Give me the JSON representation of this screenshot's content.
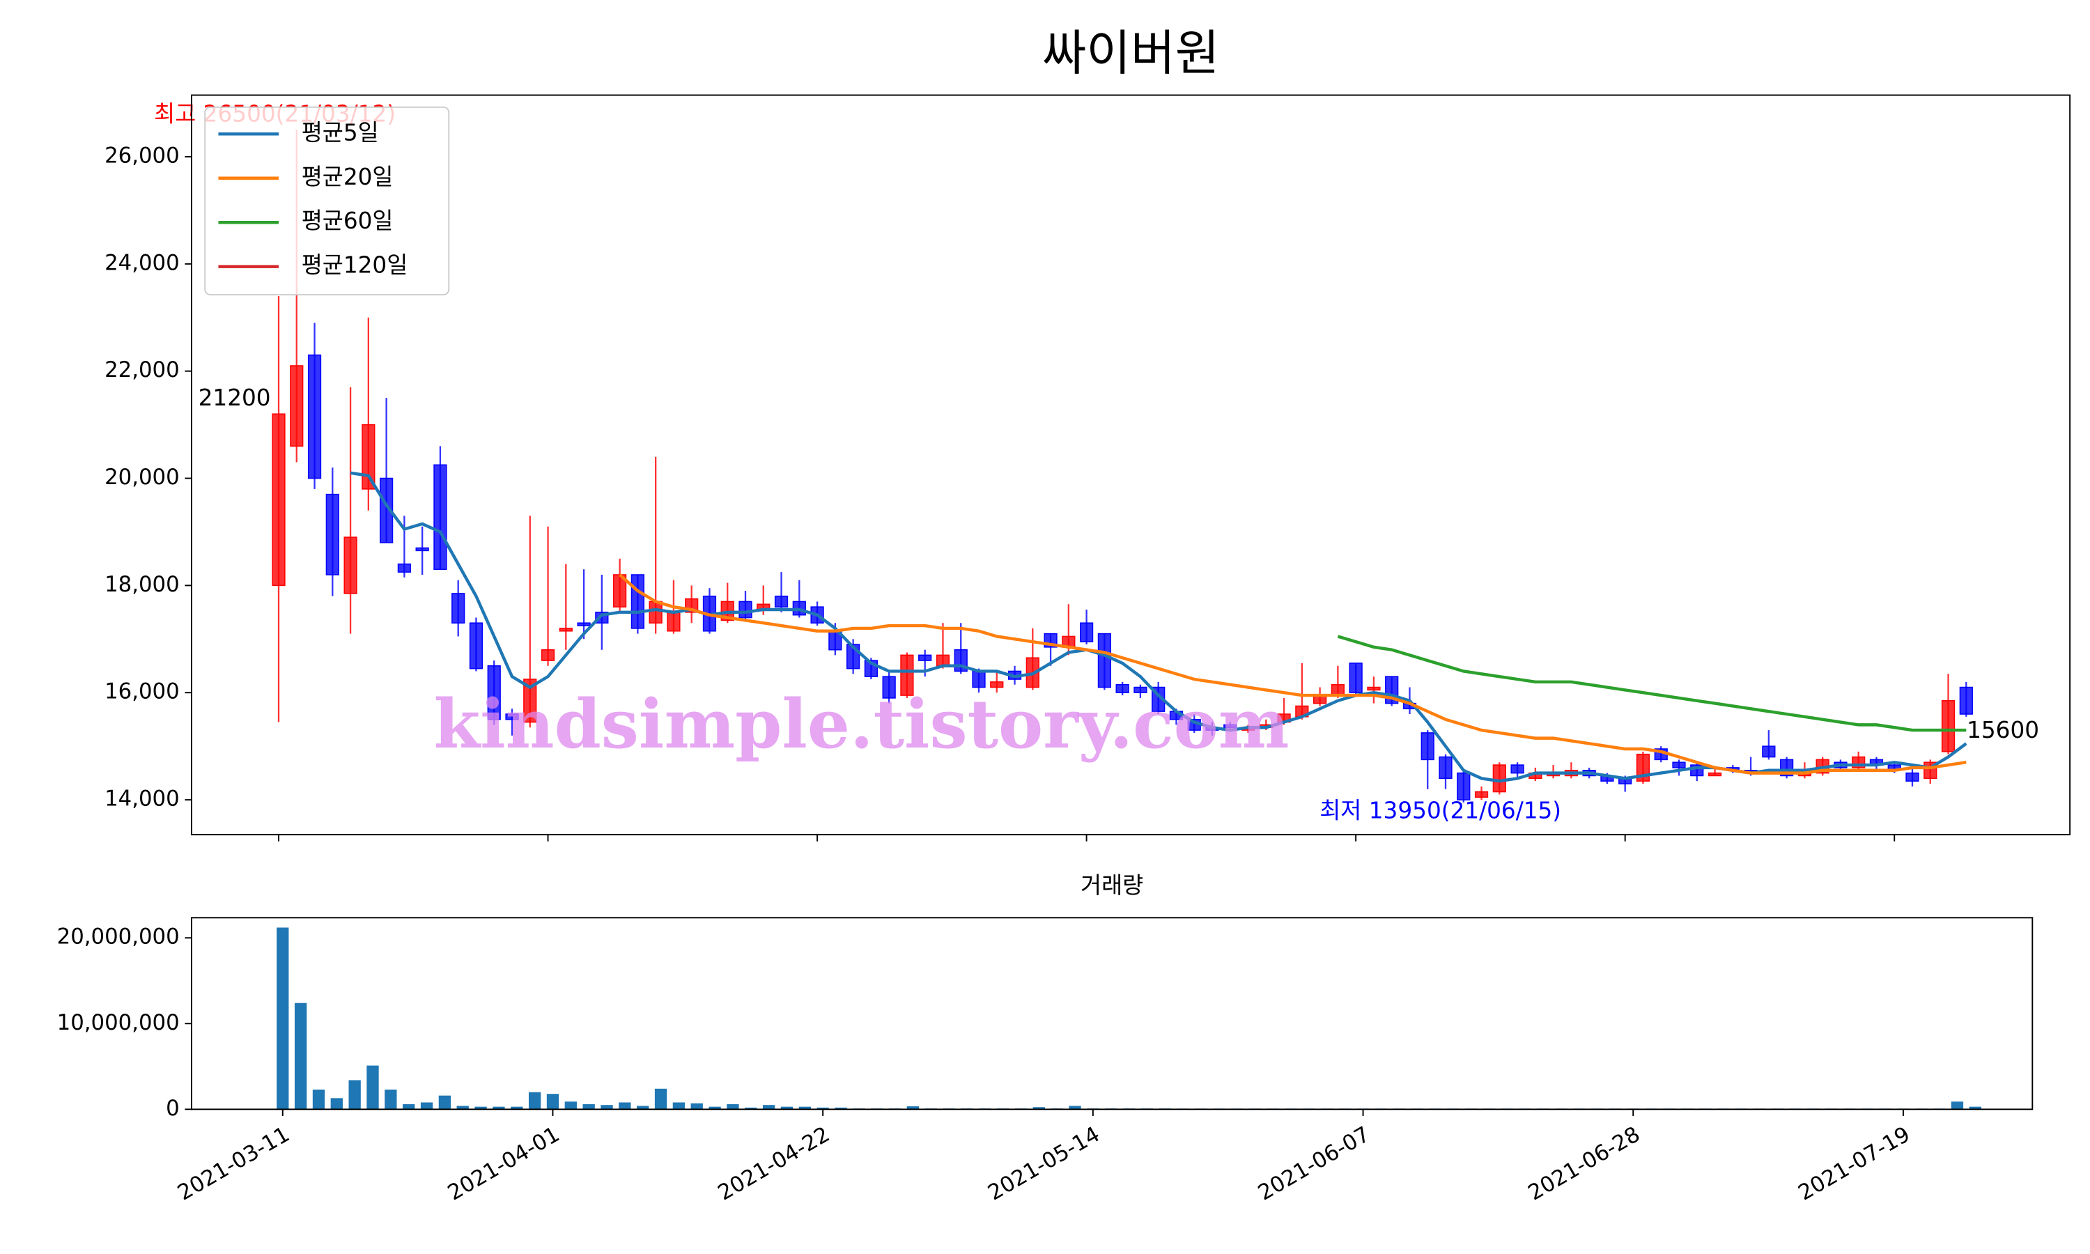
{
  "chart_data": [
    {
      "type": "candlestick",
      "title": "싸이버원",
      "categories": [
        "2021-03-11",
        "2021-03-12",
        "2021-03-15",
        "2021-03-16",
        "2021-03-17",
        "2021-03-18",
        "2021-03-19",
        "2021-03-22",
        "2021-03-23",
        "2021-03-24",
        "2021-03-25",
        "2021-03-26",
        "2021-03-29",
        "2021-03-30",
        "2021-03-31",
        "2021-04-01",
        "2021-04-02",
        "2021-04-05",
        "2021-04-06",
        "2021-04-07",
        "2021-04-08",
        "2021-04-09",
        "2021-04-12",
        "2021-04-13",
        "2021-04-14",
        "2021-04-15",
        "2021-04-16",
        "2021-04-19",
        "2021-04-20",
        "2021-04-21",
        "2021-04-22",
        "2021-04-23",
        "2021-04-26",
        "2021-04-27",
        "2021-04-28",
        "2021-04-29",
        "2021-04-30",
        "2021-05-03",
        "2021-05-04",
        "2021-05-06",
        "2021-05-07",
        "2021-05-10",
        "2021-05-11",
        "2021-05-12",
        "2021-05-13",
        "2021-05-14",
        "2021-05-17",
        "2021-05-18",
        "2021-05-20",
        "2021-05-21",
        "2021-05-24",
        "2021-05-25",
        "2021-05-26",
        "2021-05-27",
        "2021-05-28",
        "2021-05-31",
        "2021-06-01",
        "2021-06-02",
        "2021-06-03",
        "2021-06-04",
        "2021-06-07",
        "2021-06-08",
        "2021-06-09",
        "2021-06-10",
        "2021-06-11",
        "2021-06-14",
        "2021-06-15",
        "2021-06-16",
        "2021-06-17",
        "2021-06-18",
        "2021-06-21",
        "2021-06-22",
        "2021-06-23",
        "2021-06-24",
        "2021-06-25",
        "2021-06-28",
        "2021-06-29",
        "2021-06-30",
        "2021-07-01",
        "2021-07-02",
        "2021-07-05",
        "2021-07-06",
        "2021-07-07",
        "2021-07-08",
        "2021-07-09",
        "2021-07-12",
        "2021-07-13",
        "2021-07-14",
        "2021-07-15",
        "2021-07-16",
        "2021-07-19",
        "2021-07-20",
        "2021-07-21",
        "2021-07-22",
        "2021-07-23"
      ],
      "open": [
        18000,
        20600,
        22300,
        19700,
        17850,
        19800,
        20000,
        18400,
        18700,
        20250,
        17850,
        17300,
        16500,
        15600,
        15450,
        16600,
        17150,
        17300,
        17500,
        17600,
        18200,
        17300,
        17150,
        17500,
        17800,
        17350,
        17700,
        17550,
        17800,
        17700,
        17600,
        17150,
        16900,
        16600,
        16300,
        15950,
        16700,
        16500,
        16800,
        16400,
        16100,
        16400,
        16100,
        17100,
        16850,
        17300,
        17100,
        16150,
        16100,
        16100,
        15650,
        15500,
        15350,
        15400,
        15300,
        15350,
        15450,
        15550,
        15800,
        15950,
        16550,
        16050,
        16300,
        15800,
        15250,
        14800,
        14500,
        14050,
        14150,
        14650,
        14400,
        14450,
        14450,
        14550,
        14450,
        14400,
        14350,
        14950,
        14700,
        14650,
        14450,
        14600,
        14550,
        15000,
        14750,
        14450,
        14500,
        14700,
        14600,
        14750,
        14650,
        14500,
        14400,
        14900,
        16100
      ],
      "high": [
        23400,
        26500,
        22900,
        20200,
        21700,
        23000,
        21500,
        19300,
        19100,
        20600,
        18100,
        17400,
        16600,
        15700,
        19300,
        19100,
        18400,
        18300,
        18200,
        18500,
        18200,
        20400,
        18100,
        18000,
        17950,
        18050,
        17900,
        18000,
        18250,
        18100,
        17700,
        17300,
        17000,
        16650,
        16400,
        16750,
        16800,
        17300,
        17300,
        16450,
        16400,
        16500,
        17200,
        17100,
        17650,
        17550,
        17100,
        16200,
        16150,
        16200,
        15700,
        15600,
        15450,
        15450,
        15400,
        15500,
        15900,
        16550,
        16100,
        16500,
        16550,
        16300,
        16300,
        16100,
        15300,
        14850,
        14550,
        14250,
        14700,
        14700,
        14600,
        14650,
        14700,
        14600,
        14500,
        14450,
        14900,
        15000,
        14750,
        14700,
        14600,
        14650,
        14800,
        15300,
        14800,
        14700,
        14800,
        14750,
        14900,
        14800,
        14700,
        14600,
        14750,
        16350,
        16200
      ],
      "low": [
        15450,
        20300,
        19800,
        17800,
        17100,
        19400,
        18800,
        18150,
        18200,
        18300,
        17050,
        16400,
        15400,
        15200,
        15350,
        16500,
        16800,
        17000,
        16800,
        17500,
        17100,
        17100,
        17100,
        17300,
        17100,
        17300,
        17350,
        17450,
        17500,
        17400,
        17250,
        16700,
        16350,
        16250,
        15800,
        15900,
        16300,
        16450,
        16350,
        16000,
        16000,
        16150,
        16050,
        16500,
        16700,
        16900,
        16050,
        15950,
        15900,
        15600,
        15400,
        15250,
        15200,
        15300,
        15250,
        15300,
        15400,
        15500,
        15750,
        15900,
        15950,
        15800,
        15750,
        15600,
        14200,
        14200,
        13950,
        14000,
        14100,
        14400,
        14350,
        14400,
        14400,
        14400,
        14300,
        14150,
        14300,
        14700,
        14450,
        14350,
        14450,
        14500,
        14450,
        14750,
        14400,
        14400,
        14450,
        14550,
        14550,
        14550,
        14500,
        14250,
        14300,
        14850,
        15550
      ],
      "close": [
        21200,
        22100,
        20000,
        18200,
        18900,
        21000,
        18800,
        18250,
        18650,
        18300,
        17300,
        16450,
        15500,
        15500,
        16250,
        16800,
        17200,
        17250,
        17300,
        18200,
        17200,
        17700,
        17500,
        17750,
        17150,
        17700,
        17400,
        17650,
        17600,
        17450,
        17300,
        16800,
        16450,
        16300,
        15900,
        16700,
        16600,
        16700,
        16400,
        16100,
        16200,
        16250,
        16650,
        16850,
        17050,
        16950,
        16100,
        16000,
        16000,
        15650,
        15500,
        15300,
        15300,
        15350,
        15350,
        15400,
        15600,
        15750,
        15950,
        16150,
        16000,
        16100,
        15800,
        15700,
        14750,
        14400,
        14000,
        14150,
        14650,
        14500,
        14500,
        14500,
        14550,
        14450,
        14350,
        14300,
        14850,
        14750,
        14600,
        14450,
        14500,
        14550,
        14500,
        14800,
        14450,
        14500,
        14750,
        14600,
        14800,
        14650,
        14550,
        14350,
        14700,
        15850,
        15600
      ],
      "up_color": "#ff0000",
      "down_color": "#0000ff",
      "series": [
        {
          "name": "평균5일",
          "color": "#1f77b4",
          "values": [
            null,
            null,
            null,
            null,
            20100,
            20050,
            19500,
            19050,
            19150,
            19000,
            18400,
            17800,
            17050,
            16300,
            16100,
            16300,
            16700,
            17100,
            17450,
            17500,
            17500,
            17550,
            17500,
            17550,
            17450,
            17500,
            17500,
            17550,
            17550,
            17550,
            17450,
            17200,
            16850,
            16550,
            16400,
            16400,
            16400,
            16500,
            16500,
            16400,
            16400,
            16300,
            16350,
            16550,
            16750,
            16800,
            16700,
            16550,
            16300,
            15950,
            15650,
            15450,
            15350,
            15300,
            15350,
            15350,
            15450,
            15550,
            15700,
            15850,
            15950,
            16000,
            15950,
            15850,
            15450,
            15000,
            14550,
            14400,
            14350,
            14400,
            14500,
            14500,
            14500,
            14500,
            14450,
            14400,
            14450,
            14500,
            14550,
            14600,
            14600,
            14550,
            14500,
            14550,
            14550,
            14550,
            14600,
            14650,
            14650,
            14650,
            14700,
            14650,
            14600,
            14800,
            15050
          ]
        },
        {
          "name": "평균20일",
          "color": "#ff7f0e",
          "values": [
            null,
            null,
            null,
            null,
            null,
            null,
            null,
            null,
            null,
            null,
            null,
            null,
            null,
            null,
            null,
            null,
            null,
            null,
            null,
            18200,
            17900,
            17700,
            17600,
            17550,
            17450,
            17400,
            17350,
            17300,
            17250,
            17200,
            17150,
            17150,
            17200,
            17200,
            17250,
            17250,
            17250,
            17200,
            17200,
            17150,
            17050,
            17000,
            16950,
            16900,
            16850,
            16800,
            16750,
            16650,
            16550,
            16450,
            16350,
            16250,
            16200,
            16150,
            16100,
            16050,
            16000,
            15950,
            15950,
            15950,
            15950,
            15950,
            15900,
            15800,
            15650,
            15500,
            15400,
            15300,
            15250,
            15200,
            15150,
            15150,
            15100,
            15050,
            15000,
            14950,
            14950,
            14900,
            14800,
            14700,
            14600,
            14550,
            14500,
            14500,
            14500,
            14500,
            14550,
            14550,
            14550,
            14550,
            14550,
            14600,
            14600,
            14650,
            14700
          ]
        },
        {
          "name": "평균60일",
          "color": "#2ca02c",
          "values": [
            null,
            null,
            null,
            null,
            null,
            null,
            null,
            null,
            null,
            null,
            null,
            null,
            null,
            null,
            null,
            null,
            null,
            null,
            null,
            null,
            null,
            null,
            null,
            null,
            null,
            null,
            null,
            null,
            null,
            null,
            null,
            null,
            null,
            null,
            null,
            null,
            null,
            null,
            null,
            null,
            null,
            null,
            null,
            null,
            null,
            null,
            null,
            null,
            null,
            null,
            null,
            null,
            null,
            null,
            null,
            null,
            null,
            null,
            null,
            17050,
            16950,
            16850,
            16800,
            16700,
            16600,
            16500,
            16400,
            16350,
            16300,
            16250,
            16200,
            16200,
            16200,
            16150,
            16100,
            16050,
            16000,
            15950,
            15900,
            15850,
            15800,
            15750,
            15700,
            15650,
            15600,
            15550,
            15500,
            15450,
            15400,
            15400,
            15350,
            15300,
            15300,
            15300,
            15300
          ]
        },
        {
          "name": "평균120일",
          "color": "#d62728",
          "values": [
            null,
            null,
            null,
            null,
            null,
            null,
            null,
            null,
            null,
            null,
            null,
            null,
            null,
            null,
            null,
            null,
            null,
            null,
            null,
            null,
            null,
            null,
            null,
            null,
            null,
            null,
            null,
            null,
            null,
            null,
            null,
            null,
            null,
            null,
            null,
            null,
            null,
            null,
            null,
            null,
            null,
            null,
            null,
            null,
            null,
            null,
            null,
            null,
            null,
            null,
            null,
            null,
            null,
            null,
            null,
            null,
            null,
            null,
            null,
            null,
            null,
            null,
            null,
            null,
            null,
            null,
            null,
            null,
            null,
            null,
            null,
            null,
            null,
            null,
            null,
            null,
            null,
            null,
            null,
            null,
            null,
            null,
            null,
            null,
            null,
            null,
            null,
            null,
            null,
            null,
            null,
            null,
            null,
            null,
            null
          ]
        }
      ],
      "ylim": [
        13350,
        27150
      ],
      "yticks": [
        {
          "value": 14000,
          "label": "14,000"
        },
        {
          "value": 16000,
          "label": "16,000"
        },
        {
          "value": 18000,
          "label": "18,000"
        },
        {
          "value": 20000,
          "label": "20,000"
        },
        {
          "value": 22000,
          "label": "22,000"
        },
        {
          "value": 24000,
          "label": "24,000"
        },
        {
          "value": 26000,
          "label": "26,000"
        }
      ],
      "xticks": [
        0,
        15,
        30,
        45,
        60,
        75,
        90
      ],
      "legend": "upper left",
      "annotations": [
        {
          "text": "최고 26500(21/03/12)",
          "color": "#ff0000"
        },
        {
          "text": "최저 13950(21/06/15)",
          "color": "#0000ff"
        },
        {
          "text": "21200",
          "color": "#000000"
        },
        {
          "text": "15600",
          "color": "#000000"
        }
      ],
      "watermark": "kindsimple.tistory.com"
    },
    {
      "type": "bar",
      "title": "거래량",
      "color": "#1f77b4",
      "values": [
        21200000,
        12400000,
        2300000,
        1300000,
        3400000,
        5100000,
        2300000,
        600000,
        800000,
        1600000,
        400000,
        300000,
        300000,
        300000,
        2000000,
        1800000,
        900000,
        600000,
        500000,
        800000,
        400000,
        2400000,
        800000,
        700000,
        300000,
        600000,
        200000,
        500000,
        300000,
        300000,
        200000,
        200000,
        100000,
        100000,
        100000,
        350000,
        100000,
        100000,
        100000,
        100000,
        100000,
        100000,
        250000,
        100000,
        400000,
        100000,
        100000,
        100000,
        100000,
        100000,
        80000,
        80000,
        80000,
        80000,
        80000,
        80000,
        80000,
        80000,
        80000,
        80000,
        80000,
        80000,
        80000,
        80000,
        80000,
        80000,
        80000,
        80000,
        80000,
        80000,
        80000,
        80000,
        80000,
        80000,
        80000,
        80000,
        80000,
        80000,
        80000,
        80000,
        80000,
        80000,
        80000,
        80000,
        80000,
        80000,
        80000,
        80000,
        80000,
        80000,
        80000,
        80000,
        80000,
        900000,
        300000
      ],
      "ylim": [
        0,
        22350000
      ],
      "yticks": [
        0,
        {
          "value": 10000000,
          "label": "10,000,000"
        },
        {
          "value": 20000000,
          "label": "20,000,000"
        }
      ]
    }
  ]
}
